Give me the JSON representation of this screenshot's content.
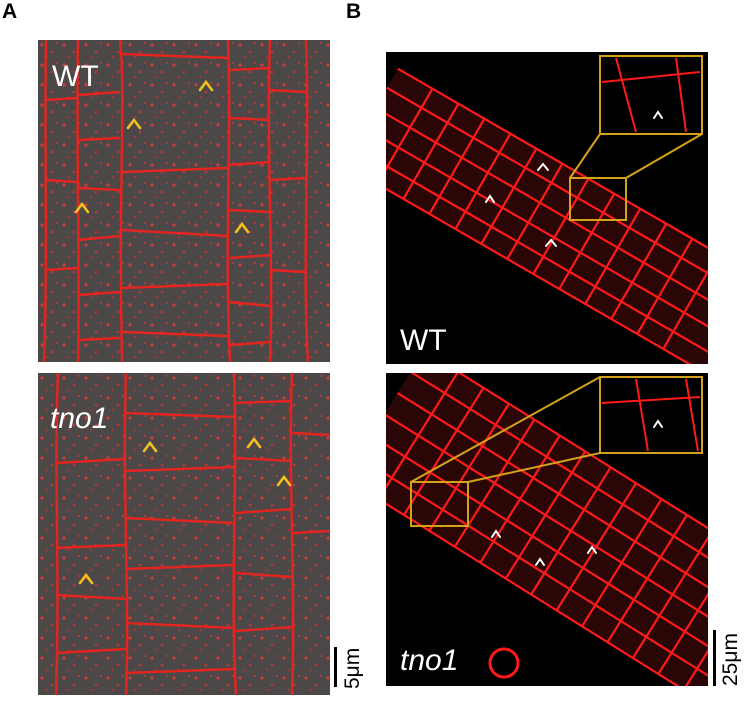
{
  "figure": {
    "panels": [
      {
        "letter": "A",
        "images": [
          {
            "genotype": "WT",
            "italic": false
          },
          {
            "genotype": "tno1",
            "italic": true
          }
        ],
        "scale_bar": "5μm",
        "colors": {
          "membrane": "#e0201e",
          "background": "#4a4545",
          "arrowhead": "#f3c11c"
        }
      },
      {
        "letter": "B",
        "images": [
          {
            "genotype": "WT",
            "italic": false
          },
          {
            "genotype": "tno1",
            "italic": true
          }
        ],
        "scale_bar": "25μm",
        "colors": {
          "membrane": "#ff1a1a",
          "background": "#000000",
          "arrowhead": "#ffffff",
          "inset_border": "#d4a21a"
        }
      }
    ]
  }
}
